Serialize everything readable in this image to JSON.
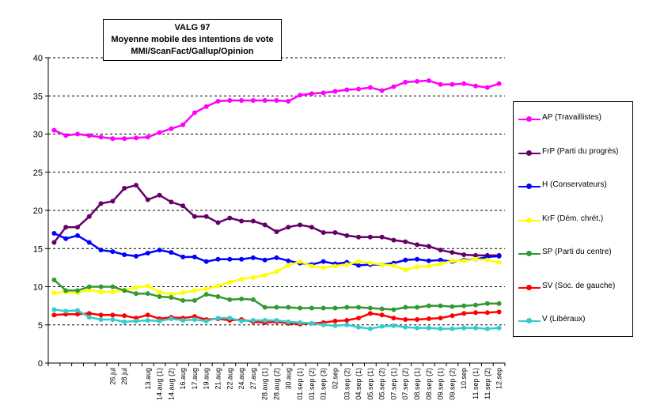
{
  "chart_data": {
    "type": "line",
    "title": [
      "VALG 97",
      "Moyenne mobile des intentions de vote",
      "MMI/ScanFact/Gallup/Opinion"
    ],
    "ylim": [
      0,
      40
    ],
    "yticks": [
      0,
      5,
      10,
      15,
      20,
      25,
      30,
      35,
      40
    ],
    "grid": "horizontal dashed",
    "legend_position": "right",
    "categories": [
      "",
      "",
      "",
      "",
      "",
      "26.jul",
      "28.jul",
      "",
      "13.aug",
      "14.aug (1)",
      "14.aug (2)",
      "16.aug",
      "17.aug",
      "19.aug",
      "21.aug",
      "22.aug",
      "24.aug",
      "27.aug",
      "28.aug (1)",
      "28.aug (2)",
      "30.aug",
      "01.sep (1)",
      "01.sep (2)",
      "01.sep (3)",
      "02.sep",
      "03.sep (2)",
      "04.sep (1)",
      "05.sep (1)",
      "05.sep (2)",
      "07.sep (1)",
      "07.sep (2)",
      "08.sep (1)",
      "08.sep (2)",
      "09.sep (1)",
      "09.sep (2)",
      "10.sep",
      "11.sep (1)",
      "11.sep (2)",
      "12.sep"
    ],
    "series": [
      {
        "name": "AP (Travaillistes)",
        "color": "#ff00ff",
        "values": [
          30.5,
          29.8,
          30.0,
          29.8,
          29.6,
          29.4,
          29.4,
          29.5,
          29.6,
          30.2,
          30.7,
          31.2,
          32.8,
          33.6,
          34.3,
          34.4,
          34.4,
          34.4,
          34.4,
          34.4,
          34.3,
          35.1,
          35.3,
          35.4,
          35.6,
          35.8,
          35.9,
          36.1,
          35.7,
          36.2,
          36.8,
          36.9,
          37.0,
          36.5,
          36.5,
          36.6,
          36.3,
          36.1,
          36.6
        ]
      },
      {
        "name": "FrP (Parti du progrès)",
        "color": "#660066",
        "values": [
          15.8,
          17.8,
          17.8,
          19.2,
          20.9,
          21.2,
          22.9,
          23.3,
          21.4,
          22.0,
          21.1,
          20.6,
          19.2,
          19.2,
          18.4,
          19.0,
          18.6,
          18.6,
          18.1,
          17.2,
          17.8,
          18.1,
          17.8,
          17.1,
          17.1,
          16.7,
          16.5,
          16.5,
          16.5,
          16.1,
          15.9,
          15.5,
          15.3,
          14.8,
          14.5,
          14.2,
          14.1,
          14.1,
          14.1
        ]
      },
      {
        "name": "H (Conservateurs)",
        "color": "#0000ff",
        "values": [
          17.0,
          16.3,
          16.7,
          15.8,
          14.8,
          14.6,
          14.2,
          14.0,
          14.4,
          14.8,
          14.5,
          13.9,
          13.9,
          13.3,
          13.6,
          13.6,
          13.6,
          13.8,
          13.5,
          13.8,
          13.4,
          13.1,
          12.9,
          13.3,
          13.0,
          13.2,
          12.8,
          12.9,
          12.9,
          13.1,
          13.5,
          13.6,
          13.4,
          13.5,
          13.3,
          13.5,
          13.6,
          13.9,
          14.0
        ]
      },
      {
        "name": "KrF (Dém. chrét.)",
        "color": "#ffff00",
        "values": [
          9.2,
          9.3,
          9.2,
          9.6,
          9.3,
          9.3,
          9.6,
          9.9,
          10.1,
          9.3,
          9.0,
          9.2,
          9.5,
          9.7,
          10.1,
          10.6,
          11.0,
          11.2,
          11.5,
          12.0,
          12.8,
          13.3,
          12.7,
          12.5,
          12.7,
          12.9,
          13.3,
          13.1,
          12.9,
          12.8,
          12.2,
          12.6,
          12.7,
          13.0,
          13.4,
          13.4,
          13.6,
          13.5,
          13.2
        ]
      },
      {
        "name": "SP (Parti du centre)",
        "color": "#339933",
        "values": [
          10.9,
          9.5,
          9.5,
          10.0,
          10.0,
          10.0,
          9.5,
          9.1,
          9.1,
          8.7,
          8.6,
          8.2,
          8.2,
          9.0,
          8.7,
          8.3,
          8.4,
          8.3,
          7.3,
          7.3,
          7.3,
          7.2,
          7.2,
          7.2,
          7.2,
          7.3,
          7.3,
          7.2,
          7.1,
          7.0,
          7.3,
          7.3,
          7.5,
          7.5,
          7.4,
          7.5,
          7.6,
          7.8,
          7.8
        ]
      },
      {
        "name": "SV (Soc. de gauche)",
        "color": "#ff0000",
        "values": [
          6.3,
          6.4,
          6.4,
          6.5,
          6.3,
          6.3,
          6.2,
          5.9,
          6.3,
          5.8,
          6.0,
          5.9,
          6.1,
          5.7,
          5.8,
          5.6,
          5.7,
          5.4,
          5.3,
          5.4,
          5.2,
          5.1,
          5.2,
          5.3,
          5.5,
          5.6,
          5.9,
          6.5,
          6.3,
          5.9,
          5.7,
          5.7,
          5.8,
          5.9,
          6.2,
          6.5,
          6.6,
          6.6,
          6.7
        ]
      },
      {
        "name": "V (Libéraux)",
        "color": "#33cccc",
        "values": [
          7.0,
          6.8,
          6.9,
          6.0,
          5.7,
          5.7,
          5.4,
          5.5,
          5.6,
          5.5,
          5.8,
          5.6,
          5.7,
          5.5,
          5.9,
          5.9,
          5.5,
          5.6,
          5.6,
          5.6,
          5.4,
          5.3,
          5.2,
          5.0,
          4.9,
          5.0,
          4.7,
          4.5,
          4.8,
          4.9,
          4.7,
          4.6,
          4.6,
          4.5,
          4.5,
          4.6,
          4.6,
          4.5,
          4.6
        ]
      }
    ]
  }
}
